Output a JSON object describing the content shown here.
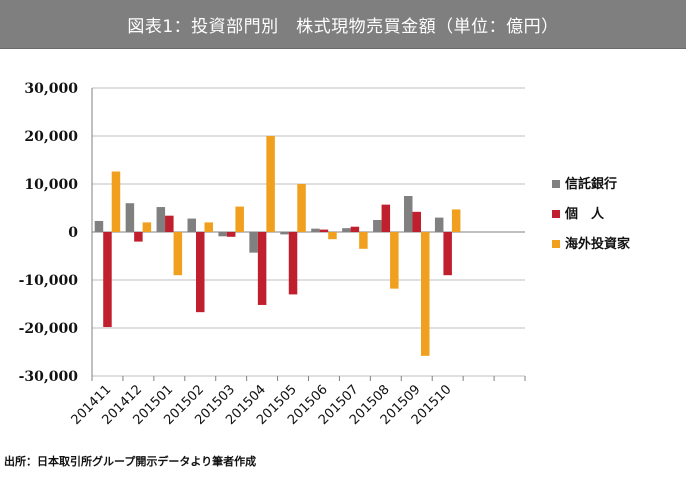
{
  "header": {
    "title": "図表1：投資部門別　株式現物売買金額（単位：億円）"
  },
  "footer": {
    "source": "出所：日本取引所グループ開示データより筆者作成"
  },
  "chart_data": {
    "type": "bar",
    "title": "図表1：投資部門別　株式現物売買金額（単位：億円）",
    "xlabel": "",
    "ylabel": "",
    "ylim": [
      -30000,
      30000
    ],
    "yticks": [
      30000,
      20000,
      10000,
      0,
      -10000,
      -20000,
      -30000
    ],
    "ytick_labels": [
      "30,000",
      "20,000",
      "10,000",
      "0",
      "-10,000",
      "-20,000",
      "-30,000"
    ],
    "grid": true,
    "legend_position": "right",
    "categories": [
      "201411",
      "201412",
      "201501",
      "201502",
      "201503",
      "201504",
      "201505",
      "201506",
      "201507",
      "201508",
      "201509",
      "201510"
    ],
    "slot_count": 14,
    "series": [
      {
        "name": "信託銀行",
        "color": "#808080",
        "values": [
          2300,
          6000,
          5200,
          2800,
          -900,
          -4300,
          -500,
          700,
          800,
          2500,
          7500,
          3000
        ]
      },
      {
        "name": "個　人",
        "color": "#c0202e",
        "values": [
          -19800,
          -2000,
          3400,
          -16700,
          -1000,
          -15200,
          -13000,
          500,
          1100,
          5700,
          4200,
          -9000
        ]
      },
      {
        "name": "海外投資家",
        "color": "#f0a01e",
        "values": [
          12600,
          2000,
          -9000,
          2000,
          5300,
          20000,
          10000,
          -1500,
          -3500,
          -11800,
          -25800,
          4700
        ]
      }
    ]
  }
}
